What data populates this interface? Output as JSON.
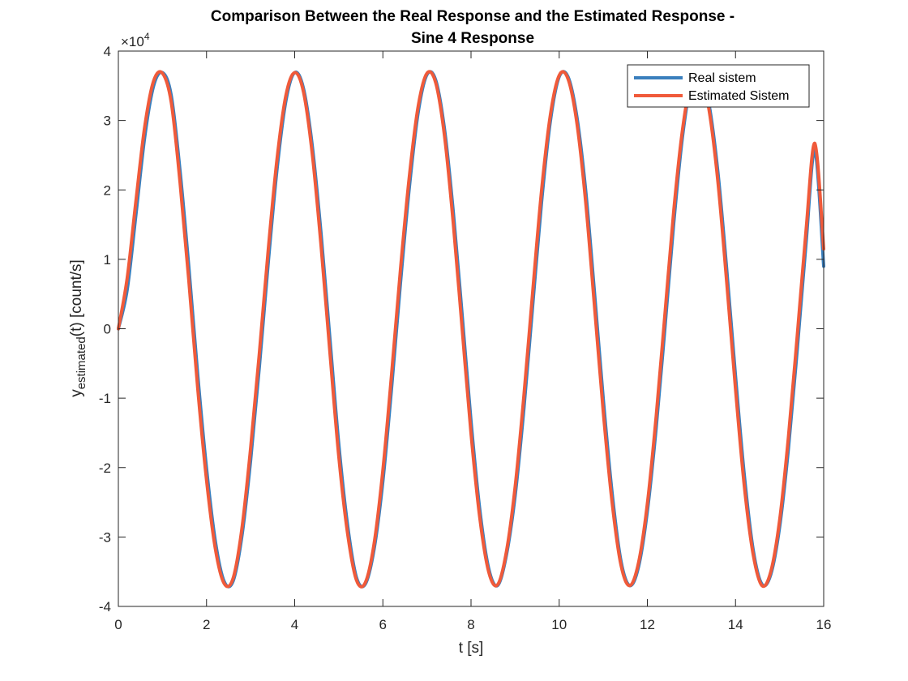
{
  "chart_data": {
    "type": "line",
    "title": [
      "Comparison Between the Real Response and the Estimated Response -",
      "Sine 4 Response"
    ],
    "xlabel": "t [s]",
    "ylabel": {
      "base": "y",
      "subscript": "estimated",
      "suffix": "(t) [count/s]"
    },
    "y_exponent_label": {
      "base": "×10",
      "exponent": "4"
    },
    "xlim": [
      0,
      16
    ],
    "ylim": [
      -40000,
      40000
    ],
    "xticks": [
      0,
      2,
      4,
      6,
      8,
      10,
      12,
      14,
      16
    ],
    "xtick_labels": [
      "0",
      "2",
      "4",
      "6",
      "8",
      "10",
      "12",
      "14",
      "16"
    ],
    "yticks": [
      -40000,
      -30000,
      -20000,
      -10000,
      0,
      10000,
      20000,
      30000,
      40000
    ],
    "ytick_labels": [
      "-4",
      "-3",
      "-2",
      "-1",
      "0",
      "1",
      "2",
      "3",
      "4"
    ],
    "grid": false,
    "legend_location": "top-right",
    "series": [
      {
        "name": "Real sistem",
        "color": "#3a7fbd",
        "x": [
          0,
          0.2,
          0.4,
          0.6,
          0.8,
          1.0,
          1.2,
          1.4,
          1.6,
          1.8,
          2.0,
          2.2,
          2.4,
          2.6,
          2.8,
          3.0,
          3.2,
          3.4,
          3.6,
          3.8,
          4.0,
          4.2,
          4.4,
          4.6,
          4.8,
          5.0,
          5.2,
          5.4,
          5.6,
          5.8,
          6.0,
          6.2,
          6.4,
          6.6,
          6.8,
          7.0,
          7.2,
          7.4,
          7.6,
          7.8,
          8.0,
          8.2,
          8.4,
          8.6,
          8.8,
          9.0,
          9.2,
          9.4,
          9.6,
          9.8,
          10.0,
          10.2,
          10.4,
          10.6,
          10.8,
          11.0,
          11.2,
          11.4,
          11.6,
          11.8,
          12.0,
          12.2,
          12.4,
          12.6,
          12.8,
          13.0,
          13.2,
          13.4,
          13.6,
          13.8,
          14.0,
          14.2,
          14.4,
          14.6,
          14.8,
          15.0,
          15.2,
          15.4,
          15.6,
          15.8,
          16.0
        ],
        "y": [
          0,
          5600,
          16500,
          27700,
          35000,
          36900,
          33600,
          22700,
          8800,
          -6600,
          -20100,
          -30600,
          -36400,
          -36400,
          -30000,
          -19000,
          -5400,
          9500,
          23000,
          32800,
          36900,
          34600,
          26300,
          13600,
          -1500,
          -16600,
          -28300,
          -35800,
          -36800,
          -31800,
          -22000,
          -8400,
          6600,
          20300,
          31100,
          36600,
          35800,
          28700,
          16700,
          1900,
          -13300,
          -26100,
          -34500,
          -37000,
          -32700,
          -24100,
          -11500,
          3400,
          18200,
          29900,
          36300,
          36300,
          30600,
          20000,
          5300,
          -10100,
          -23600,
          -33400,
          -37000,
          -34300,
          -26300,
          -14300,
          200,
          15300,
          27800,
          35500,
          36800,
          32300,
          22600,
          8600,
          -6800,
          -21100,
          -31800,
          -36800,
          -35400,
          -28600,
          -17300,
          -3000,
          12300,
          25600,
          9000
        ]
      },
      {
        "name": "Estimated Sistem",
        "color": "#f05a3a",
        "x": [
          0,
          0.2,
          0.4,
          0.6,
          0.8,
          1.0,
          1.2,
          1.4,
          1.6,
          1.8,
          2.0,
          2.2,
          2.4,
          2.6,
          2.8,
          3.0,
          3.2,
          3.4,
          3.6,
          3.8,
          4.0,
          4.2,
          4.4,
          4.6,
          4.8,
          5.0,
          5.2,
          5.4,
          5.6,
          5.8,
          6.0,
          6.2,
          6.4,
          6.6,
          6.8,
          7.0,
          7.2,
          7.4,
          7.6,
          7.8,
          8.0,
          8.2,
          8.4,
          8.6,
          8.8,
          9.0,
          9.2,
          9.4,
          9.6,
          9.8,
          10.0,
          10.2,
          10.4,
          10.6,
          10.8,
          11.0,
          11.2,
          11.4,
          11.6,
          11.8,
          12.0,
          12.2,
          12.4,
          12.6,
          12.8,
          13.0,
          13.2,
          13.4,
          13.6,
          13.8,
          14.0,
          14.2,
          14.4,
          14.6,
          14.8,
          15.0,
          15.2,
          15.4,
          15.6,
          15.8,
          16.0
        ],
        "y": [
          0,
          7300,
          18500,
          29200,
          35700,
          36800,
          32600,
          21000,
          6800,
          -8600,
          -21800,
          -31700,
          -36700,
          -36000,
          -28900,
          -17200,
          -3400,
          11400,
          24500,
          33600,
          36900,
          34100,
          25100,
          11800,
          -3500,
          -18400,
          -29500,
          -36200,
          -36600,
          -31000,
          -20400,
          -6400,
          8600,
          21900,
          32000,
          36800,
          35400,
          27700,
          15000,
          -100,
          -15100,
          -27300,
          -35000,
          -36900,
          -32200,
          -22800,
          -9600,
          5400,
          19900,
          30800,
          36500,
          36000,
          29700,
          18300,
          3300,
          -12000,
          -25000,
          -34000,
          -37000,
          -33700,
          -25200,
          -12600,
          2200,
          17100,
          28800,
          35800,
          36600,
          31500,
          21200,
          6700,
          -8700,
          -22700,
          -32500,
          -37000,
          -35000,
          -27600,
          -15600,
          -1000,
          14200,
          26700,
          11500
        ]
      }
    ]
  }
}
